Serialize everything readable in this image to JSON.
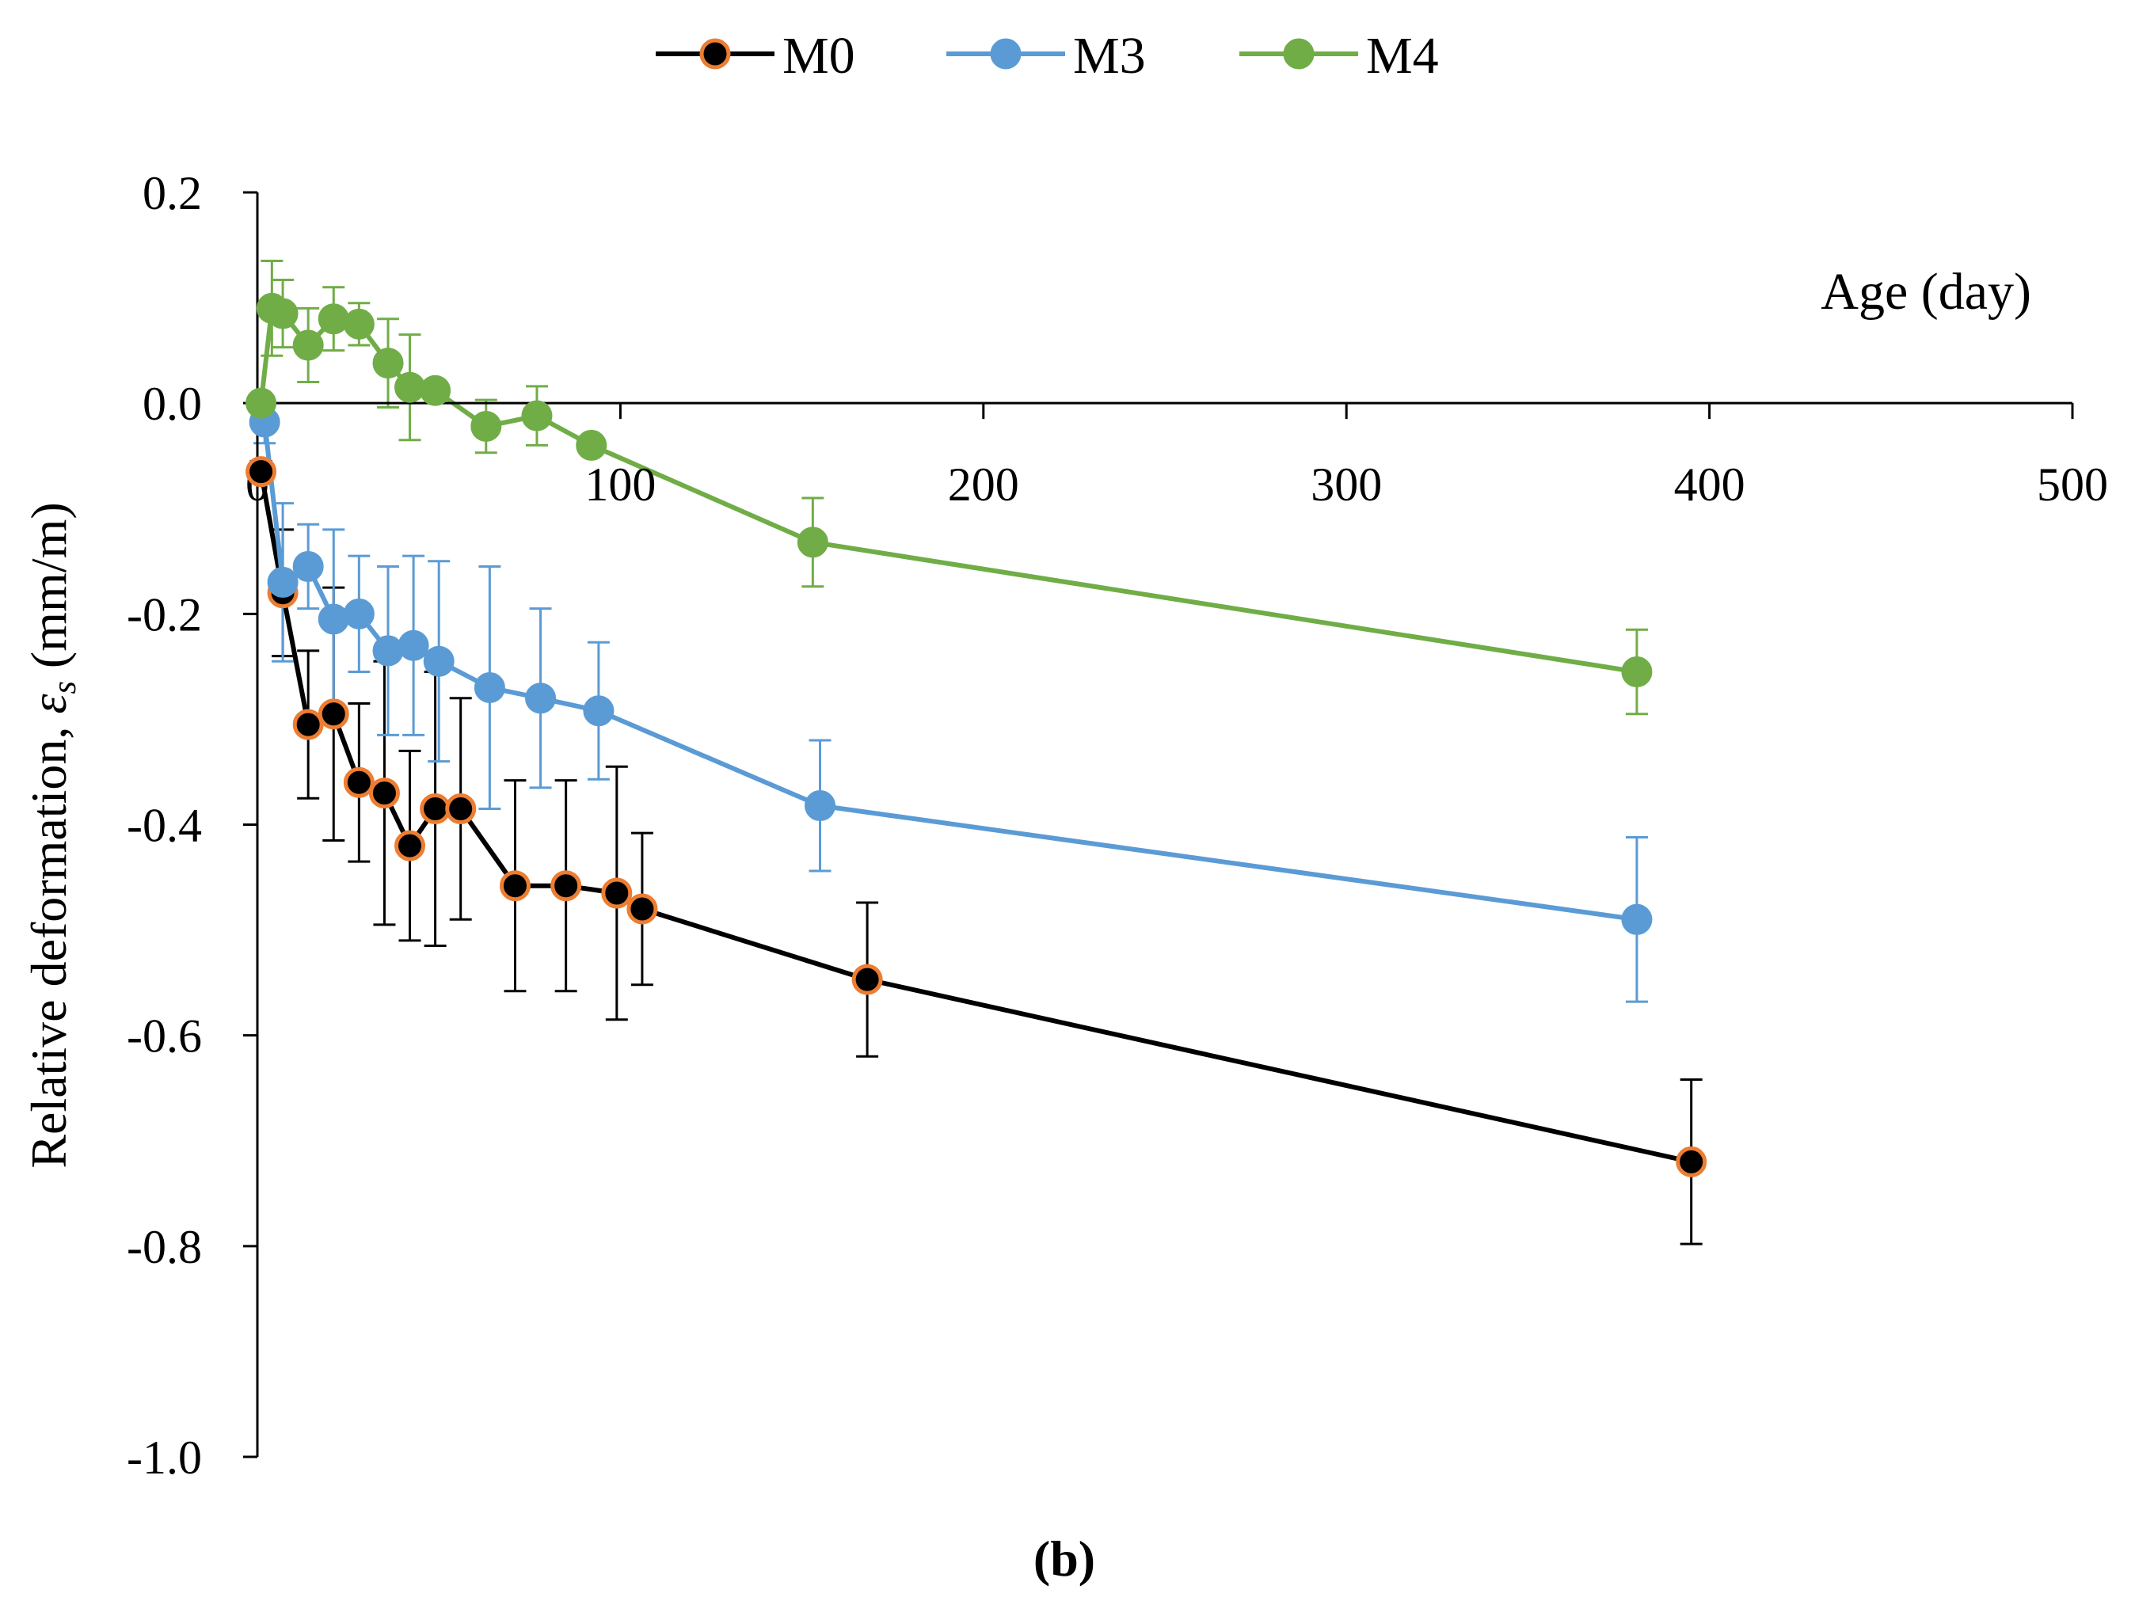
{
  "chart_data": {
    "type": "line",
    "title": "",
    "caption": "(b)",
    "xlabel": "Age (day)",
    "ylabel": "Relative deformation, εs (mm/m)",
    "ylabel_parts": {
      "prefix": "Relative deformation, ",
      "symbol": "ε",
      "subscript": "s",
      "suffix": " (mm/m)"
    },
    "xlim": [
      0,
      500
    ],
    "ylim": [
      -1.0,
      0.2
    ],
    "x_ticks": [
      0,
      100,
      200,
      300,
      400,
      500
    ],
    "x_tick_labels": [
      "0",
      "100",
      "200",
      "300",
      "400",
      "500"
    ],
    "y_ticks": [
      0.2,
      0.0,
      -0.2,
      -0.4,
      -0.6,
      -0.8,
      -1.0
    ],
    "y_tick_labels": [
      "0.2",
      "0.0",
      "-0.2",
      "-0.4",
      "-0.6",
      "-0.8",
      "-1.0"
    ],
    "grid": false,
    "legend_position": "top-center",
    "series": [
      {
        "name": "M0",
        "line_color": "#000000",
        "marker_fill": "#000000",
        "marker_edge": "#ed7d31",
        "error_color": "#000000",
        "x": [
          1,
          7,
          14,
          21,
          28,
          35,
          42,
          49,
          56,
          71,
          85,
          99,
          106,
          168,
          395
        ],
        "y": [
          -0.065,
          -0.18,
          -0.305,
          -0.295,
          -0.36,
          -0.37,
          -0.42,
          -0.385,
          -0.385,
          -0.458,
          -0.458,
          -0.465,
          -0.48,
          -0.547,
          -0.72
        ],
        "err": [
          0.01,
          0.06,
          0.07,
          0.12,
          0.075,
          0.125,
          0.09,
          0.13,
          0.105,
          0.1,
          0.1,
          0.12,
          0.072,
          0.073,
          0.078
        ]
      },
      {
        "name": "M3",
        "line_color": "#5b9bd5",
        "marker_fill": "#5b9bd5",
        "marker_edge": "#5b9bd5",
        "error_color": "#5b9bd5",
        "x": [
          2,
          7,
          14,
          21,
          28,
          36,
          43,
          50,
          64,
          78,
          94,
          155,
          380
        ],
        "y": [
          -0.018,
          -0.17,
          -0.155,
          -0.205,
          -0.2,
          -0.235,
          -0.23,
          -0.245,
          -0.27,
          -0.28,
          -0.292,
          -0.382,
          -0.49
        ],
        "err": [
          0.02,
          0.075,
          0.04,
          0.085,
          0.055,
          0.08,
          0.085,
          0.095,
          0.115,
          0.085,
          0.065,
          0.062,
          0.078
        ]
      },
      {
        "name": "M4",
        "line_color": "#70ad47",
        "marker_fill": "#70ad47",
        "marker_edge": "#70ad47",
        "error_color": "#70ad47",
        "x": [
          1,
          4,
          7,
          14,
          21,
          28,
          36,
          42,
          49,
          63,
          77,
          92,
          153,
          380
        ],
        "y": [
          0.0,
          0.09,
          0.085,
          0.055,
          0.08,
          0.075,
          0.038,
          0.015,
          0.012,
          -0.022,
          -0.012,
          -0.04,
          -0.132,
          -0.255
        ],
        "err": [
          0.0,
          0.045,
          0.032,
          0.035,
          0.03,
          0.02,
          0.042,
          0.05,
          0.0,
          0.025,
          0.028,
          0.0,
          0.042,
          0.04
        ]
      }
    ]
  }
}
